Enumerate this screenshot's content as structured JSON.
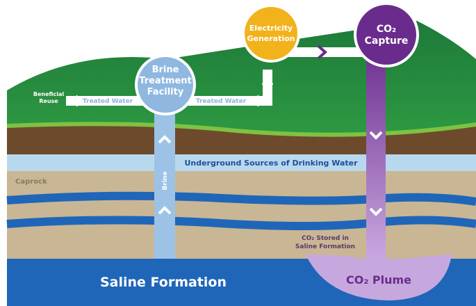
{
  "nodes": [
    {
      "label": [
        "Brine",
        "Treatment",
        "Facility"
      ]
    },
    {
      "label": [
        "Electricity",
        "Generation"
      ]
    },
    {
      "label": [
        "CO₂",
        "Capture"
      ]
    }
  ],
  "flows": {
    "reuse": [
      "Beneficial",
      "Reuse"
    ],
    "treated_left": "Treated Water",
    "treated_right": "Treated Water",
    "brine": "Brine"
  },
  "layers": {
    "drinking_water": "Underground Sources of Drinking Water",
    "caprock": "Caprock",
    "stored": [
      "CO₂ Stored in",
      "Saline Formation"
    ],
    "saline": "Saline Formation",
    "plume": "CO₂ Plume"
  }
}
